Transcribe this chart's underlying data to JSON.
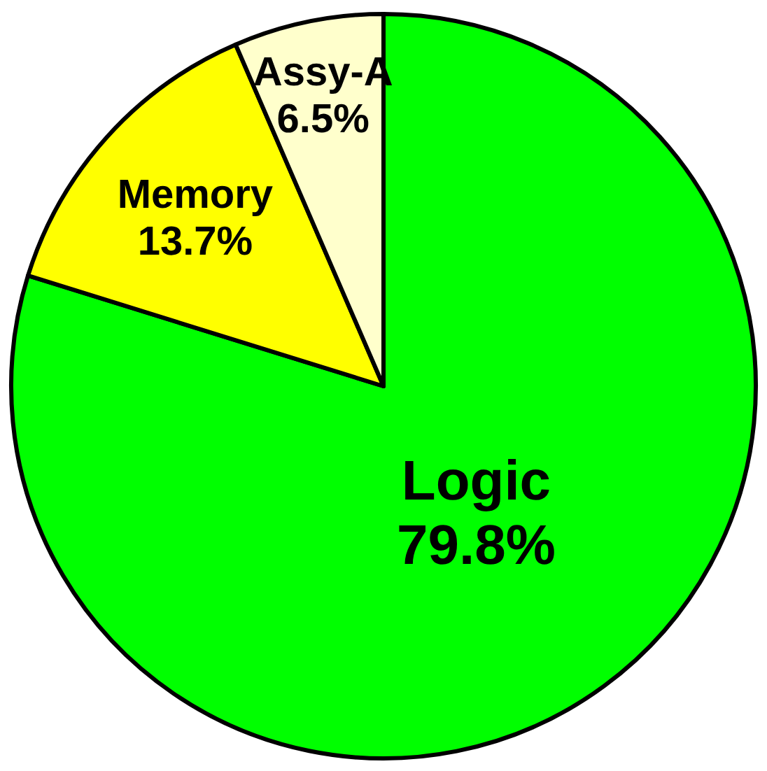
{
  "chart_data": {
    "type": "pie",
    "categories": [
      "Logic",
      "Memory",
      "Assy-A"
    ],
    "values": [
      79.8,
      13.7,
      6.5
    ],
    "colors": [
      "#00ff00",
      "#ffff00",
      "#ffffcc"
    ],
    "value_labels": [
      "79.8%",
      "13.7%",
      "6.5%"
    ]
  }
}
